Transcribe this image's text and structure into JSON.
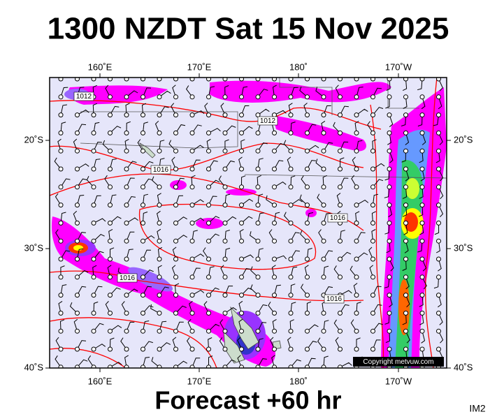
{
  "header": {
    "title": "1300 NZDT Sat 15 Nov 2025"
  },
  "map": {
    "top_labels": [
      "160˚E",
      "170˚E",
      "180˚",
      "170˚W"
    ],
    "bottom_labels": [
      "160˚E",
      "170˚E",
      "180˚",
      "170˚W"
    ],
    "left_labels": [
      "20˚S",
      "30˚S",
      "40˚S"
    ],
    "right_labels": [
      "20˚S",
      "30˚S",
      "40˚S"
    ],
    "isobar_labels": [
      "1012",
      "1012",
      "1016",
      "1016",
      "1016",
      "1016"
    ],
    "copyright": "Copyright metvuw.com"
  },
  "footer": {
    "caption": "Forecast +60 hr",
    "code": "IM2"
  }
}
